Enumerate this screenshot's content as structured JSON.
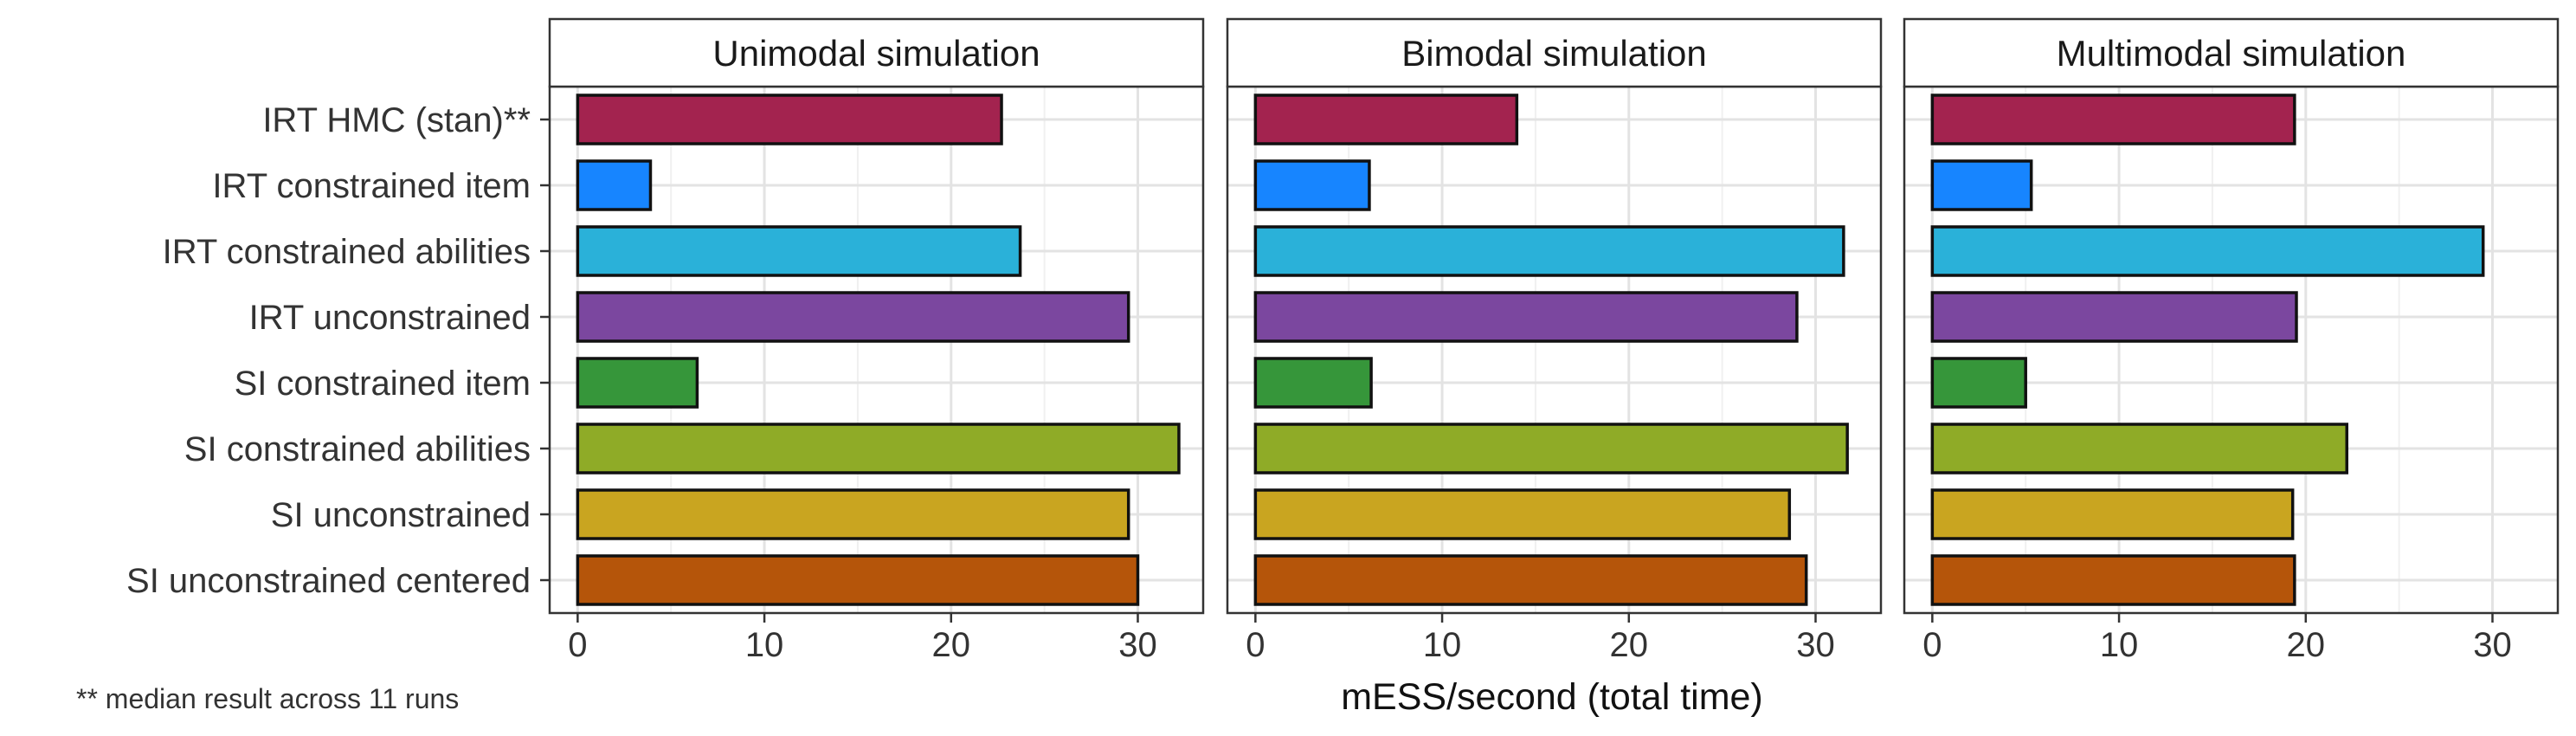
{
  "chart_data": {
    "type": "bar",
    "orientation": "horizontal",
    "xlabel": "mESS/second (total time)",
    "footnote": "** median result across 11 runs",
    "xlim": [
      -1.5,
      33.5
    ],
    "xticks": [
      0,
      10,
      20,
      30
    ],
    "grid": true,
    "categories": [
      "IRT HMC (stan)**",
      "IRT constrained item",
      "IRT constrained abilities",
      "IRT unconstrained",
      "SI constrained item",
      "SI constrained abilities",
      "SI unconstrained",
      "SI unconstrained centered"
    ],
    "colors": [
      "#A3234F",
      "#1785FF",
      "#2AB1D9",
      "#7B479F",
      "#36963A",
      "#8FAB27",
      "#C9A520",
      "#B5550A"
    ],
    "panels": [
      {
        "title": "Unimodal simulation",
        "values": [
          22.7,
          3.9,
          23.7,
          29.5,
          6.4,
          32.2,
          29.5,
          30.0
        ]
      },
      {
        "title": "Bimodal simulation",
        "values": [
          14.0,
          6.1,
          31.5,
          29.0,
          6.2,
          31.7,
          28.6,
          29.5
        ]
      },
      {
        "title": "Multimodal simulation",
        "values": [
          19.4,
          5.3,
          29.5,
          19.5,
          5.0,
          22.2,
          19.3,
          19.4
        ]
      }
    ]
  }
}
